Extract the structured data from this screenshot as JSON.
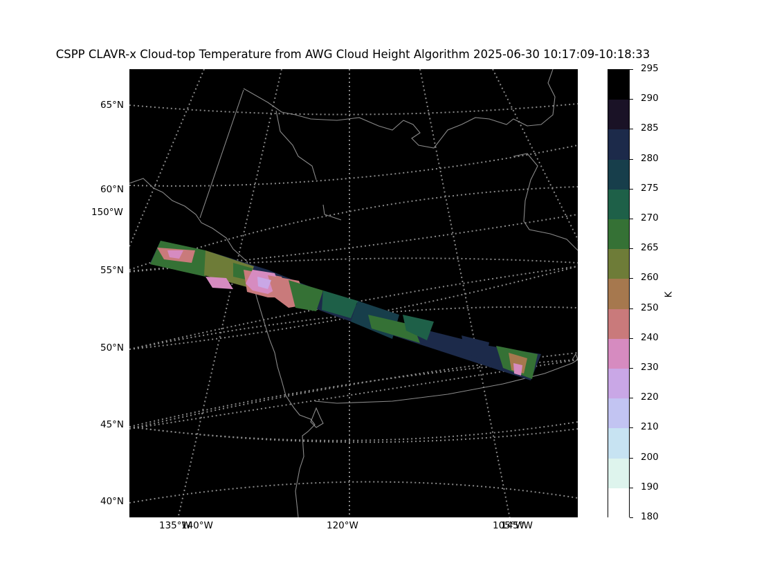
{
  "title": "CSPP CLAVR-x Cloud-top Temperature from AWG Cloud Height Algorithm 2025-06-30 10:17:09-10:18:33",
  "lat_labels": [
    "65°N",
    "60°N",
    "55°N",
    "50°N",
    "45°N",
    "40°N"
  ],
  "lon_labels_left": [
    "150°W"
  ],
  "lon_labels_bottom": [
    "135°W",
    "140°W",
    "120°W",
    "105°W",
    "145°W"
  ],
  "colorbar": {
    "unit": "K",
    "ticks": [
      "295",
      "290",
      "285",
      "280",
      "275",
      "270",
      "265",
      "260",
      "250",
      "240",
      "230",
      "220",
      "210",
      "200",
      "190",
      "180"
    ],
    "colors_top_to_bottom": [
      "#000000",
      "#1a1226",
      "#1c2a4a",
      "#173e4b",
      "#1e6048",
      "#357135",
      "#6e7c38",
      "#a6784e",
      "#c97a7b",
      "#d68bc0",
      "#c9a7e6",
      "#c2c4f2",
      "#c7e3f2",
      "#def4ed",
      "#ffffff"
    ]
  },
  "colors": {
    "background": "#000000",
    "coastline": "#8a8a8a",
    "graticule": "#8a8a8a"
  }
}
